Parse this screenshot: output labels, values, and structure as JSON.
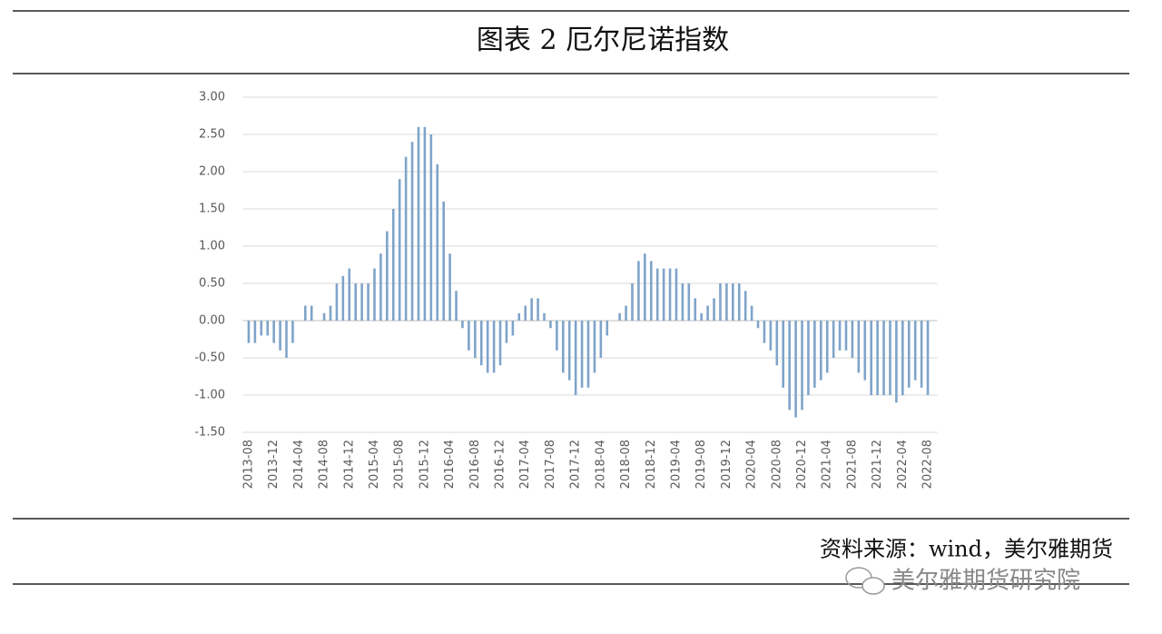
{
  "title": "图表 2 厄尔尼诺指数",
  "chart_data": {
    "type": "bar",
    "categories": [
      "2013-08",
      null,
      null,
      null,
      "2013-12",
      null,
      null,
      null,
      "2014-04",
      null,
      null,
      null,
      "2014-08",
      null,
      null,
      null,
      "2014-12",
      null,
      null,
      null,
      "2015-04",
      null,
      null,
      null,
      "2015-08",
      null,
      null,
      null,
      "2015-12",
      null,
      null,
      null,
      "2016-04",
      null,
      null,
      null,
      "2016-08",
      null,
      null,
      null,
      "2016-12",
      null,
      null,
      null,
      "2017-04",
      null,
      null,
      null,
      "2017-08",
      null,
      null,
      null,
      "2017-12",
      null,
      null,
      null,
      "2018-04",
      null,
      null,
      null,
      "2018-08",
      null,
      null,
      null,
      "2018-12",
      null,
      null,
      null,
      "2019-04",
      null,
      null,
      null,
      "2019-08",
      null,
      null,
      null,
      "2019-12",
      null,
      null,
      null,
      "2020-04",
      null,
      null,
      null,
      "2020-08",
      null,
      null,
      null,
      "2020-12",
      null,
      null,
      null,
      "2021-04",
      null,
      null,
      null,
      "2021-08",
      null,
      null,
      null,
      "2021-12",
      null,
      null,
      null,
      "2022-04",
      null,
      null,
      null,
      "2022-08"
    ],
    "values": [
      -0.3,
      -0.3,
      -0.2,
      -0.2,
      -0.3,
      -0.4,
      -0.5,
      -0.3,
      0.0,
      0.2,
      0.2,
      0.0,
      0.1,
      0.2,
      0.5,
      0.6,
      0.7,
      0.5,
      0.5,
      0.5,
      0.7,
      0.9,
      1.2,
      1.5,
      1.9,
      2.2,
      2.4,
      2.6,
      2.6,
      2.5,
      2.1,
      1.6,
      0.9,
      0.4,
      -0.1,
      -0.4,
      -0.5,
      -0.6,
      -0.7,
      -0.7,
      -0.6,
      -0.3,
      -0.2,
      0.1,
      0.2,
      0.3,
      0.3,
      0.1,
      -0.1,
      -0.4,
      -0.7,
      -0.8,
      -1.0,
      -0.9,
      -0.9,
      -0.7,
      -0.5,
      -0.2,
      0.0,
      0.1,
      0.2,
      0.5,
      0.8,
      0.9,
      0.8,
      0.7,
      0.7,
      0.7,
      0.7,
      0.5,
      0.5,
      0.3,
      0.1,
      0.2,
      0.3,
      0.5,
      0.5,
      0.5,
      0.5,
      0.4,
      0.2,
      -0.1,
      -0.3,
      -0.4,
      -0.6,
      -0.9,
      -1.2,
      -1.3,
      -1.2,
      -1.0,
      -0.9,
      -0.8,
      -0.7,
      -0.5,
      -0.4,
      -0.4,
      -0.5,
      -0.7,
      -0.8,
      -1.0,
      -1.0,
      -1.0,
      -1.0,
      -1.1,
      -1.0,
      -0.9,
      -0.8,
      -0.9,
      -1.0
    ],
    "color": "#7fa4c9",
    "ylim": [
      -1.5,
      3
    ],
    "yticks": [
      {
        "value": -1.5,
        "label": "-1.50"
      },
      {
        "value": -1,
        "label": "-1.00"
      },
      {
        "value": -0.5,
        "label": "-0.50"
      },
      {
        "value": 0,
        "label": "0.00"
      },
      {
        "value": 0.5,
        "label": "0.50"
      },
      {
        "value": 1,
        "label": "1.00"
      },
      {
        "value": 1.5,
        "label": "1.50"
      },
      {
        "value": 2,
        "label": "2.00"
      },
      {
        "value": 2.5,
        "label": "2.50"
      },
      {
        "value": 3,
        "label": "3.00"
      }
    ],
    "grid": true
  },
  "source": "资料来源：wind，美尔雅期货",
  "watermark": "美尔雅期货研究院"
}
